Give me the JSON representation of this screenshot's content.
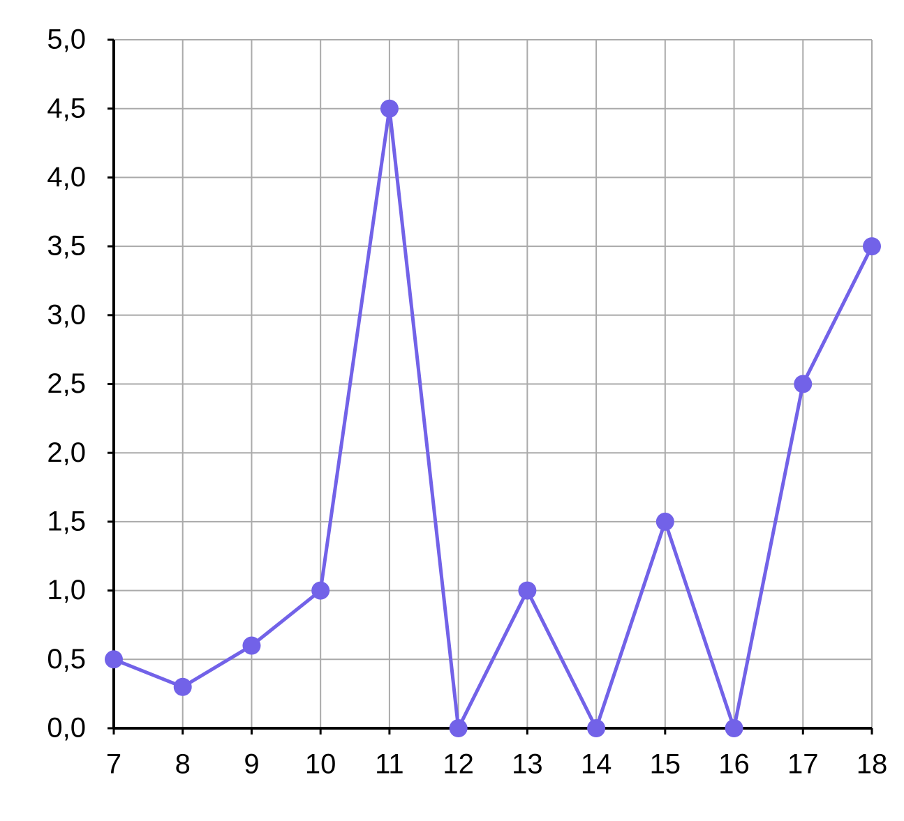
{
  "chart_data": {
    "type": "line",
    "x": [
      7,
      8,
      9,
      10,
      11,
      12,
      13,
      14,
      15,
      16,
      17,
      18
    ],
    "values": [
      0.5,
      0.3,
      0.6,
      1.0,
      4.5,
      0,
      1.0,
      0,
      1.5,
      0,
      2.5,
      3.5
    ],
    "color": "#7262e8",
    "xlim": [
      7,
      18
    ],
    "xticks": [
      7,
      8,
      9,
      10,
      11,
      12,
      13,
      14,
      15,
      16,
      17,
      18
    ],
    "ylim": [
      0,
      5
    ],
    "yticks": [
      {
        "value": 0,
        "label": "0,0"
      },
      {
        "value": 0.5,
        "label": "0,5"
      },
      {
        "value": 1,
        "label": "1,0"
      },
      {
        "value": 1.5,
        "label": "1,5"
      },
      {
        "value": 2,
        "label": "2,0"
      },
      {
        "value": 2.5,
        "label": "2,5"
      },
      {
        "value": 3,
        "label": "3,0"
      },
      {
        "value": 3.5,
        "label": "3,5"
      },
      {
        "value": 4,
        "label": "4,0"
      },
      {
        "value": 4.5,
        "label": "4,5"
      },
      {
        "value": 5,
        "label": "5,0"
      }
    ],
    "grid": true
  }
}
